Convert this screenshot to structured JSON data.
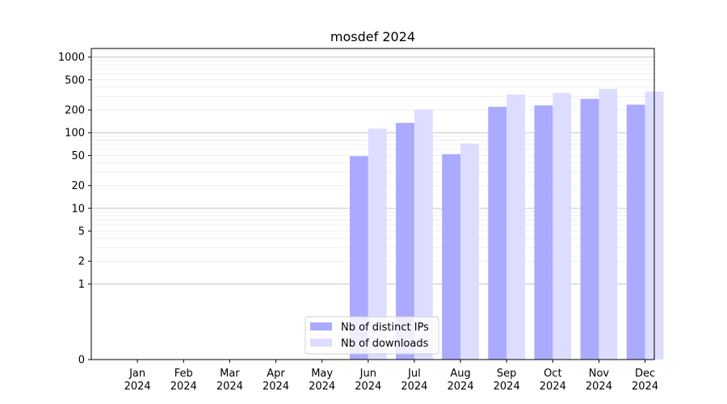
{
  "chart_data": {
    "type": "bar",
    "title": "mosdef 2024",
    "xlabel": "",
    "ylabel": "",
    "y_scale": "symlog",
    "ylim": [
      0,
      1300
    ],
    "y_ticks": [
      0,
      1,
      2,
      5,
      10,
      20,
      50,
      100,
      200,
      500,
      1000
    ],
    "y_tick_labels": [
      "0",
      "1",
      "2",
      "5",
      "10",
      "20",
      "50",
      "100",
      "200",
      "500",
      "1000"
    ],
    "categories": [
      "Jan\n2024",
      "Feb\n2024",
      "Mar\n2024",
      "Apr\n2024",
      "May\n2024",
      "Jun\n2024",
      "Jul\n2024",
      "Aug\n2024",
      "Sep\n2024",
      "Oct\n2024",
      "Nov\n2024",
      "Dec\n2024"
    ],
    "series": [
      {
        "name": "Nb of distinct IPs",
        "color": "#aaaaff",
        "values": [
          0,
          0,
          0,
          0,
          0,
          49,
          135,
          52,
          220,
          230,
          280,
          235
        ]
      },
      {
        "name": "Nb of downloads",
        "color": "#ddddff",
        "values": [
          0,
          0,
          0,
          0,
          0,
          113,
          203,
          72,
          320,
          335,
          380,
          350
        ]
      }
    ],
    "grid": true,
    "legend_position": "bottom-center"
  }
}
